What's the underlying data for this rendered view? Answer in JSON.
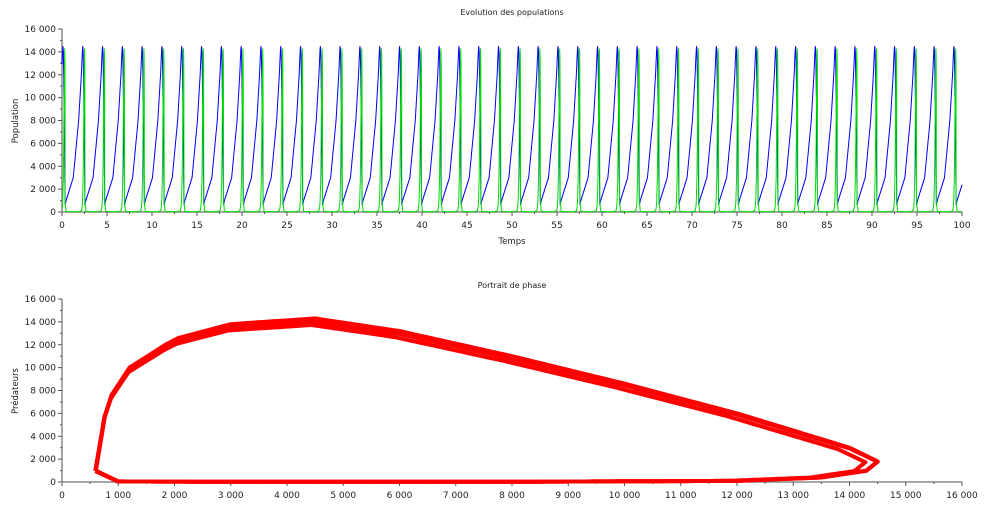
{
  "chart_data": [
    {
      "type": "line",
      "title": "Evolution des populations",
      "xlabel": "Temps",
      "ylabel": "Population",
      "xlim": [
        0,
        100
      ],
      "ylim": [
        0,
        16000
      ],
      "xticks": [
        "0",
        "5",
        "10",
        "15",
        "20",
        "25",
        "30",
        "35",
        "40",
        "45",
        "50",
        "55",
        "60",
        "65",
        "70",
        "75",
        "80",
        "85",
        "90",
        "95",
        "100"
      ],
      "yticks": [
        "0",
        "2 000",
        "4 000",
        "6 000",
        "8 000",
        "10 000",
        "12 000",
        "14 000",
        "16 000"
      ],
      "grid": false,
      "period": 2.2,
      "start_phase": 1.85,
      "cycle": {
        "t": [
          0,
          0.1,
          0.9,
          1.5,
          1.8,
          1.88,
          1.93,
          1.96,
          2.0,
          2.04,
          2.07,
          2.1,
          2.13,
          2.15,
          2.17,
          2.185,
          2.19,
          2.195,
          2.2
        ],
        "prey": [
          600,
          1000,
          3000,
          8000,
          12000,
          13500,
          14300,
          14500,
          14000,
          12000,
          10000,
          8000,
          6000,
          4500,
          3000,
          2000,
          1200,
          800,
          600
        ],
        "predator": [
          1000,
          50,
          20,
          20,
          100,
          400,
          1000,
          1800,
          3000,
          6000,
          8600,
          11000,
          13200,
          14300,
          13800,
          12500,
          10000,
          7000,
          1000
        ]
      },
      "series": [
        {
          "color": "#0000ff",
          "key": "prey"
        },
        {
          "color": "#00dd00",
          "key": "predator"
        }
      ]
    },
    {
      "type": "line",
      "title": "Portrait de phase",
      "xlabel": "",
      "ylabel": "Prédateurs",
      "xlim": [
        0,
        16000
      ],
      "ylim": [
        0,
        16000
      ],
      "xticks": [
        "0",
        "1 000",
        "2 000",
        "3 000",
        "4 000",
        "5 000",
        "6 000",
        "7 000",
        "8 000",
        "9 000",
        "10 000",
        "11 000",
        "12 000",
        "13 000",
        "14 000",
        "15 000",
        "16 000"
      ],
      "yticks": [
        "0",
        "2 000",
        "4 000",
        "6 000",
        "8 000",
        "10 000",
        "12 000",
        "14 000",
        "16 000"
      ],
      "grid": false,
      "series": [
        {
          "color": "#ff0000"
        }
      ]
    }
  ]
}
